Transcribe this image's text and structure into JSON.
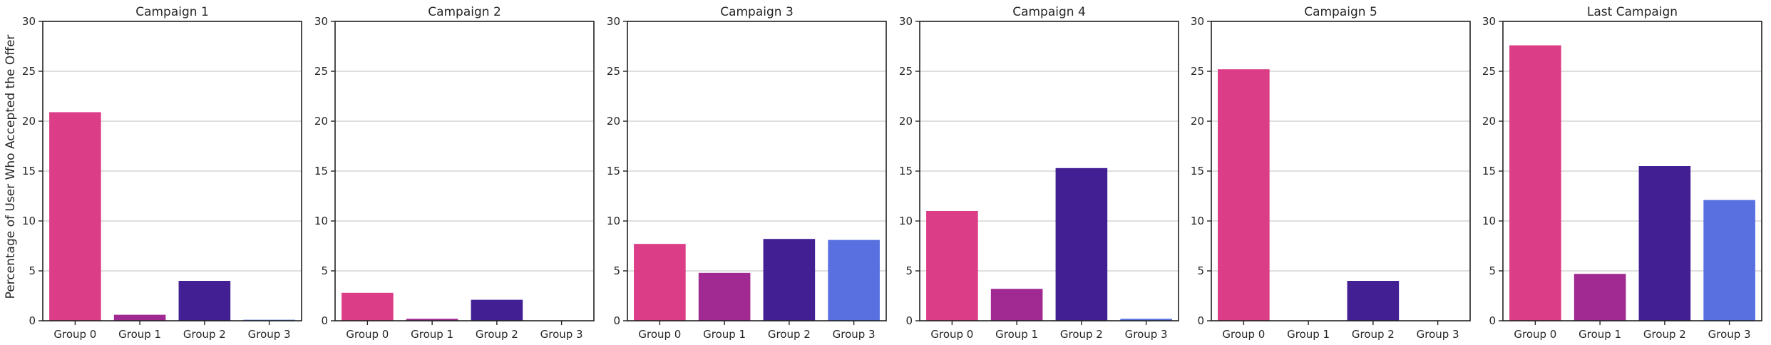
{
  "chart_data": {
    "type": "bar",
    "ylabel": "Percentage of User Who Accepted the Offer",
    "ylim": [
      0,
      30
    ],
    "yticks": [
      0,
      5,
      10,
      15,
      20,
      25,
      30
    ],
    "grid": "horizontal",
    "categories": [
      "Group 0",
      "Group 1",
      "Group 2",
      "Group 3"
    ],
    "colors": [
      "#dc3d87",
      "#a02a92",
      "#421f93",
      "#5870e0"
    ],
    "panels": [
      {
        "title": "Campaign 1",
        "values": [
          20.9,
          0.6,
          4.0,
          0.1
        ]
      },
      {
        "title": "Campaign 2",
        "values": [
          2.8,
          0.2,
          2.1,
          0.0
        ]
      },
      {
        "title": "Campaign 3",
        "values": [
          7.7,
          4.8,
          8.2,
          8.1
        ]
      },
      {
        "title": "Campaign 4",
        "values": [
          11.0,
          3.2,
          15.3,
          0.2
        ]
      },
      {
        "title": "Campaign 5",
        "values": [
          25.2,
          0.0,
          4.0,
          0.0
        ]
      },
      {
        "title": "Last Campaign",
        "values": [
          27.6,
          4.7,
          15.5,
          12.1
        ]
      }
    ]
  }
}
